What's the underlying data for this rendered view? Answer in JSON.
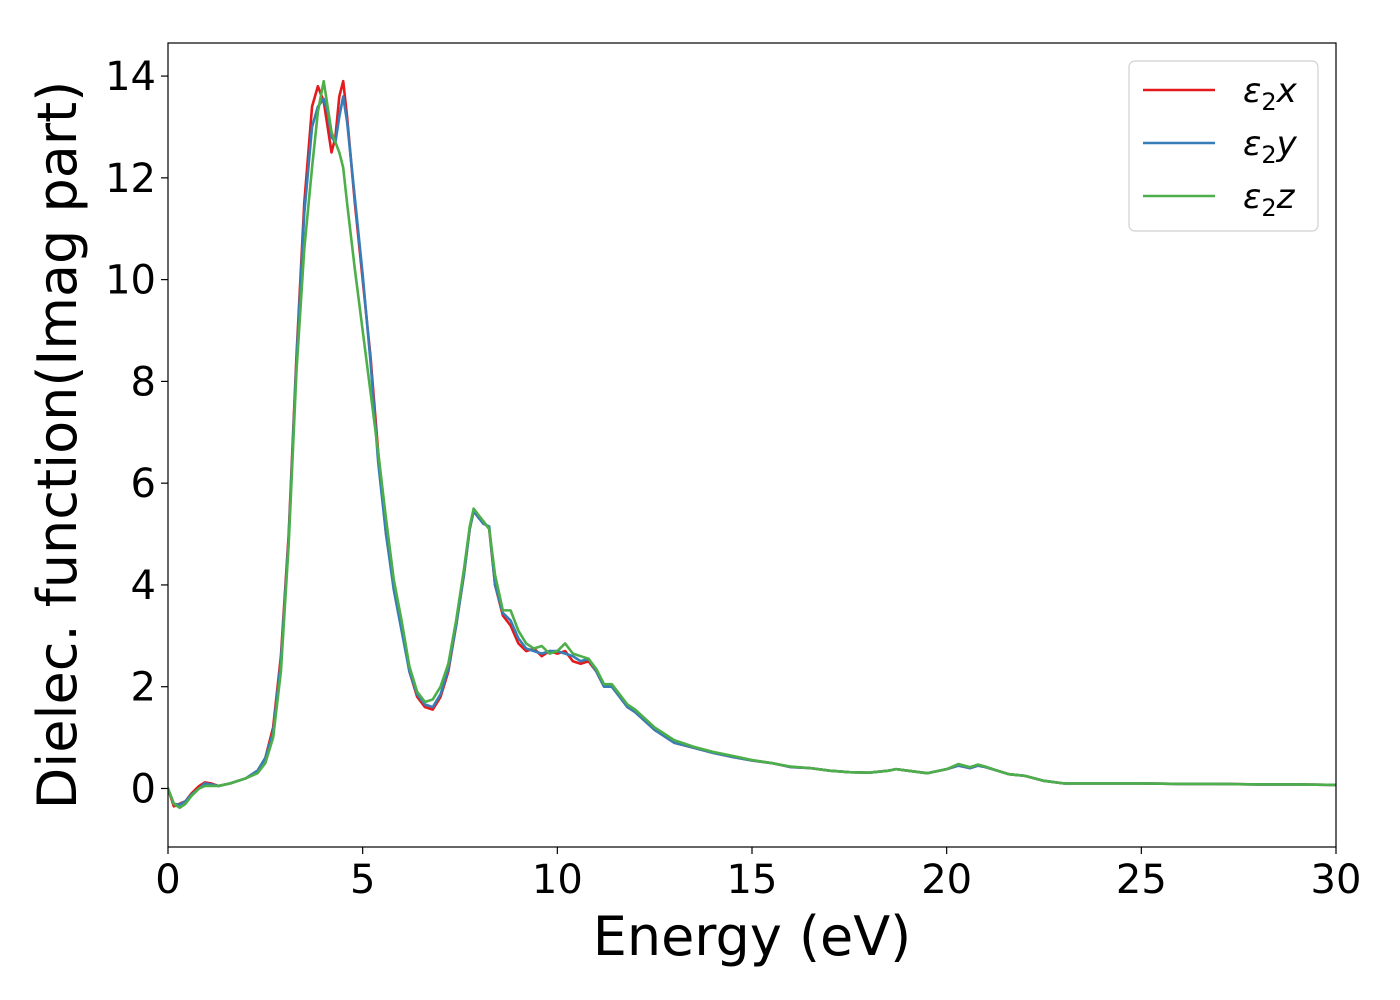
{
  "chart_data": {
    "type": "line",
    "title": "",
    "xlabel": "Energy (eV)",
    "ylabel": "Dielec. function(Imag part)",
    "xlim": [
      0,
      30
    ],
    "ylim": [
      -1.15,
      14.65
    ],
    "xticks": [
      0,
      5,
      10,
      15,
      20,
      25,
      30
    ],
    "xtick_labels": [
      "0",
      "5",
      "10",
      "15",
      "20",
      "25",
      "30"
    ],
    "yticks": [
      0,
      2,
      4,
      6,
      8,
      10,
      12,
      14
    ],
    "ytick_labels": [
      "0",
      "2",
      "4",
      "6",
      "8",
      "10",
      "12",
      "14"
    ],
    "grid": false,
    "legend_position": "top-right",
    "series": [
      {
        "name": "ε₂x",
        "label_main": "ε",
        "label_sub": "2",
        "label_suffix": "x",
        "color": "#e41a1c",
        "x": [
          0,
          0.15,
          0.3,
          0.45,
          0.6,
          0.8,
          0.95,
          1.1,
          1.3,
          1.6,
          2.0,
          2.3,
          2.5,
          2.7,
          2.9,
          3.1,
          3.3,
          3.5,
          3.7,
          3.85,
          4.0,
          4.1,
          4.2,
          4.3,
          4.4,
          4.5,
          4.6,
          4.8,
          5.0,
          5.2,
          5.4,
          5.6,
          5.8,
          6.0,
          6.2,
          6.4,
          6.6,
          6.8,
          7.0,
          7.2,
          7.4,
          7.6,
          7.75,
          7.85,
          8.0,
          8.1,
          8.25,
          8.4,
          8.6,
          8.8,
          9.0,
          9.2,
          9.4,
          9.6,
          9.8,
          10.0,
          10.2,
          10.4,
          10.6,
          10.8,
          11.0,
          11.2,
          11.4,
          11.6,
          11.8,
          12.0,
          12.5,
          13.0,
          13.5,
          14.0,
          14.5,
          15.0,
          15.5,
          16.0,
          16.5,
          17.0,
          17.5,
          18.0,
          18.5,
          18.7,
          19.0,
          19.5,
          20.0,
          20.3,
          20.6,
          20.8,
          21.0,
          21.3,
          21.6,
          22.0,
          22.5,
          23.0,
          24.0,
          25.0,
          26.0,
          27.0,
          28.0,
          29.0,
          30.0
        ],
        "y": [
          0.0,
          -0.35,
          -0.3,
          -0.25,
          -0.1,
          0.05,
          0.12,
          0.1,
          0.05,
          0.1,
          0.2,
          0.35,
          0.6,
          1.2,
          2.6,
          5.0,
          8.5,
          11.5,
          13.4,
          13.8,
          13.5,
          13.0,
          12.5,
          12.8,
          13.6,
          13.9,
          13.2,
          11.5,
          10.0,
          8.5,
          6.6,
          5.0,
          4.0,
          3.2,
          2.3,
          1.8,
          1.6,
          1.55,
          1.8,
          2.3,
          3.2,
          4.2,
          5.1,
          5.45,
          5.3,
          5.25,
          5.1,
          4.0,
          3.4,
          3.2,
          2.85,
          2.7,
          2.75,
          2.6,
          2.7,
          2.65,
          2.7,
          2.5,
          2.45,
          2.5,
          2.3,
          2.0,
          2.0,
          1.8,
          1.6,
          1.5,
          1.15,
          0.9,
          0.8,
          0.7,
          0.62,
          0.55,
          0.5,
          0.42,
          0.4,
          0.35,
          0.32,
          0.31,
          0.35,
          0.38,
          0.35,
          0.3,
          0.38,
          0.45,
          0.4,
          0.45,
          0.42,
          0.35,
          0.28,
          0.25,
          0.15,
          0.1,
          0.1,
          0.1,
          0.09,
          0.09,
          0.08,
          0.08,
          0.07
        ]
      },
      {
        "name": "ε₂y",
        "label_main": "ε",
        "label_sub": "2",
        "label_suffix": "y",
        "color": "#377eb8",
        "x": [
          0,
          0.15,
          0.3,
          0.45,
          0.6,
          0.8,
          0.95,
          1.1,
          1.3,
          1.6,
          2.0,
          2.3,
          2.5,
          2.7,
          2.9,
          3.1,
          3.3,
          3.5,
          3.7,
          3.85,
          4.0,
          4.1,
          4.2,
          4.3,
          4.4,
          4.5,
          4.6,
          4.8,
          5.0,
          5.2,
          5.4,
          5.6,
          5.8,
          6.0,
          6.2,
          6.4,
          6.6,
          6.8,
          7.0,
          7.2,
          7.4,
          7.6,
          7.75,
          7.85,
          8.0,
          8.1,
          8.25,
          8.4,
          8.6,
          8.8,
          9.0,
          9.2,
          9.4,
          9.6,
          9.8,
          10.0,
          10.2,
          10.4,
          10.6,
          10.8,
          11.0,
          11.2,
          11.4,
          11.6,
          11.8,
          12.0,
          12.5,
          13.0,
          13.5,
          14.0,
          14.5,
          15.0,
          15.5,
          16.0,
          16.5,
          17.0,
          17.5,
          18.0,
          18.5,
          18.7,
          19.0,
          19.5,
          20.0,
          20.3,
          20.6,
          20.8,
          21.0,
          21.3,
          21.6,
          22.0,
          22.5,
          23.0,
          24.0,
          25.0,
          26.0,
          27.0,
          28.0,
          29.0,
          30.0
        ],
        "y": [
          0.0,
          -0.3,
          -0.32,
          -0.25,
          -0.12,
          0.0,
          0.1,
          0.08,
          0.05,
          0.1,
          0.2,
          0.35,
          0.6,
          1.1,
          2.5,
          4.9,
          8.4,
          11.3,
          13.0,
          13.4,
          13.55,
          13.3,
          12.8,
          12.7,
          13.2,
          13.6,
          13.1,
          11.6,
          10.1,
          8.4,
          6.4,
          5.0,
          3.9,
          3.1,
          2.3,
          1.85,
          1.65,
          1.6,
          1.85,
          2.35,
          3.2,
          4.2,
          5.1,
          5.45,
          5.3,
          5.2,
          5.15,
          4.0,
          3.45,
          3.3,
          2.95,
          2.75,
          2.7,
          2.65,
          2.7,
          2.7,
          2.65,
          2.6,
          2.5,
          2.55,
          2.3,
          2.0,
          2.0,
          1.8,
          1.6,
          1.5,
          1.15,
          0.9,
          0.8,
          0.7,
          0.62,
          0.55,
          0.5,
          0.42,
          0.4,
          0.35,
          0.32,
          0.31,
          0.35,
          0.38,
          0.35,
          0.3,
          0.38,
          0.45,
          0.4,
          0.45,
          0.42,
          0.35,
          0.28,
          0.25,
          0.15,
          0.1,
          0.1,
          0.1,
          0.09,
          0.09,
          0.08,
          0.08,
          0.07
        ]
      },
      {
        "name": "ε₂z",
        "label_main": "ε",
        "label_sub": "2",
        "label_suffix": "z",
        "color": "#4daf4a",
        "x": [
          0,
          0.15,
          0.3,
          0.45,
          0.6,
          0.8,
          0.95,
          1.1,
          1.3,
          1.6,
          2.0,
          2.3,
          2.5,
          2.7,
          2.9,
          3.1,
          3.3,
          3.5,
          3.7,
          3.85,
          4.0,
          4.1,
          4.2,
          4.3,
          4.4,
          4.5,
          4.6,
          4.8,
          5.0,
          5.2,
          5.4,
          5.6,
          5.8,
          6.0,
          6.2,
          6.4,
          6.6,
          6.8,
          7.0,
          7.2,
          7.4,
          7.6,
          7.75,
          7.85,
          8.0,
          8.1,
          8.25,
          8.4,
          8.6,
          8.8,
          9.0,
          9.2,
          9.4,
          9.6,
          9.8,
          10.0,
          10.2,
          10.4,
          10.6,
          10.8,
          11.0,
          11.2,
          11.4,
          11.6,
          11.8,
          12.0,
          12.5,
          13.0,
          13.5,
          14.0,
          14.5,
          15.0,
          15.5,
          16.0,
          16.5,
          17.0,
          17.5,
          18.0,
          18.5,
          18.7,
          19.0,
          19.5,
          20.0,
          20.3,
          20.6,
          20.8,
          21.0,
          21.3,
          21.6,
          22.0,
          22.5,
          23.0,
          24.0,
          25.0,
          26.0,
          27.0,
          28.0,
          29.0,
          30.0
        ],
        "y": [
          0.0,
          -0.3,
          -0.38,
          -0.3,
          -0.15,
          0.0,
          0.05,
          0.05,
          0.05,
          0.1,
          0.2,
          0.3,
          0.5,
          1.0,
          2.3,
          4.8,
          8.2,
          10.6,
          12.2,
          13.3,
          13.9,
          13.4,
          12.9,
          12.7,
          12.5,
          12.2,
          11.5,
          10.2,
          9.0,
          7.8,
          6.6,
          5.3,
          4.1,
          3.3,
          2.4,
          1.9,
          1.7,
          1.75,
          2.0,
          2.45,
          3.3,
          4.3,
          5.15,
          5.5,
          5.35,
          5.25,
          5.1,
          4.2,
          3.5,
          3.5,
          3.1,
          2.85,
          2.75,
          2.8,
          2.65,
          2.7,
          2.85,
          2.65,
          2.6,
          2.55,
          2.35,
          2.05,
          2.05,
          1.85,
          1.65,
          1.55,
          1.2,
          0.95,
          0.82,
          0.72,
          0.64,
          0.56,
          0.5,
          0.43,
          0.4,
          0.35,
          0.32,
          0.31,
          0.35,
          0.38,
          0.35,
          0.3,
          0.38,
          0.48,
          0.42,
          0.47,
          0.43,
          0.35,
          0.28,
          0.25,
          0.15,
          0.1,
          0.1,
          0.1,
          0.09,
          0.09,
          0.08,
          0.08,
          0.07
        ]
      }
    ]
  }
}
